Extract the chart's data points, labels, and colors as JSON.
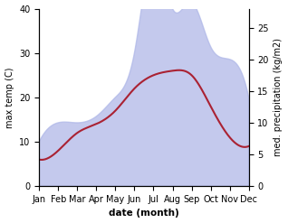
{
  "months": [
    "Jan",
    "Feb",
    "Mar",
    "Apr",
    "May",
    "Jun",
    "Jul",
    "Aug",
    "Sep",
    "Oct",
    "Nov",
    "Dec"
  ],
  "month_x": [
    0,
    1,
    2,
    3,
    4,
    5,
    6,
    7,
    8,
    9,
    10,
    11
  ],
  "temp": [
    6,
    8,
    12,
    14,
    17,
    22,
    25,
    26,
    25,
    18,
    11,
    9
  ],
  "precip": [
    7,
    10,
    10,
    11,
    14,
    21,
    37,
    28,
    29,
    22,
    20,
    14
  ],
  "temp_ylim": [
    0,
    40
  ],
  "precip_ylim": [
    0,
    28
  ],
  "fill_color": "#b0b8e8",
  "fill_alpha": 0.75,
  "line_color": "#aa2233",
  "line_width": 1.5,
  "ylabel_left": "max temp (C)",
  "ylabel_right": "med. precipitation (kg/m2)",
  "xlabel": "date (month)",
  "yticks_left": [
    0,
    10,
    20,
    30,
    40
  ],
  "yticks_right": [
    0,
    5,
    10,
    15,
    20,
    25
  ],
  "background_color": "#ffffff",
  "figsize": [
    3.18,
    2.47
  ],
  "dpi": 100
}
